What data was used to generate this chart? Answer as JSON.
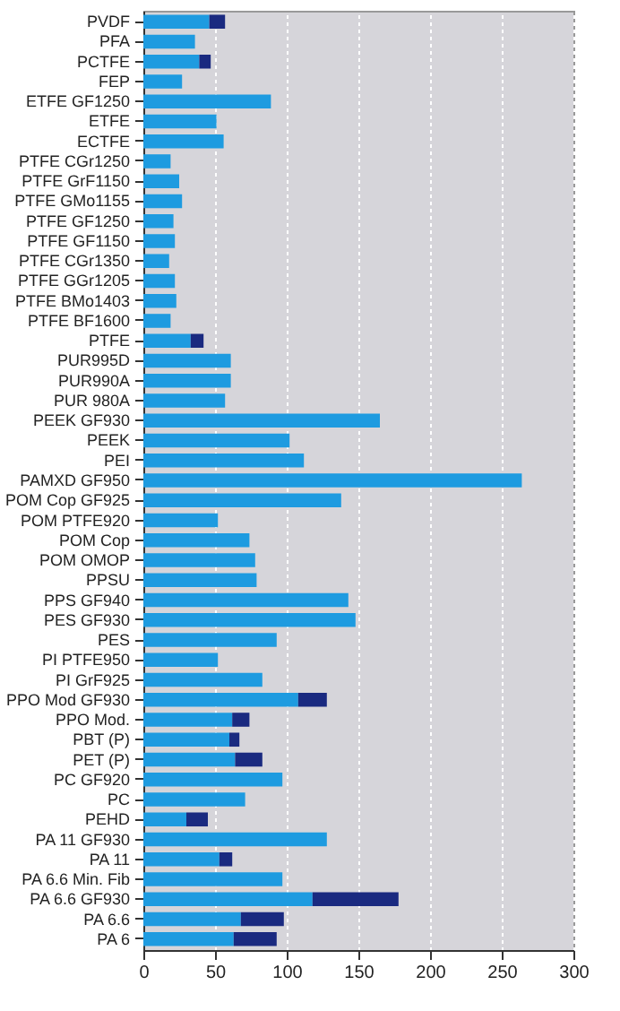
{
  "chart_data": {
    "type": "bar",
    "orientation": "horizontal",
    "stacked": true,
    "grid": "x",
    "categories": [
      "PVDF",
      "PFA",
      "PCTFE",
      "FEP",
      "ETFE GF1250",
      "ETFE",
      "ECTFE",
      "PTFE CGr1250",
      "PTFE GrF1150",
      "PTFE GMo1155",
      "PTFE GF1250",
      "PTFE GF1150",
      "PTFE CGr1350",
      "PTFE GGr1205",
      "PTFE BMo1403",
      "PTFE BF1600",
      "PTFE",
      "PUR995D",
      "PUR990A",
      "PUR 980A",
      "PEEK GF930",
      "PEEK",
      "PEI",
      "PAMXD GF950",
      "POM Cop GF925",
      "POM PTFE920",
      "POM Cop",
      "POM OMOP",
      "PPSU",
      "PPS GF940",
      "PES GF930",
      "PES",
      "PI PTFE950",
      "PI GrF925",
      "PPO Mod GF930",
      "PPO Mod.",
      "PBT (P)",
      "PET (P)",
      "PC GF920",
      "PC",
      "PEHD",
      "PA 11 GF930",
      "PA 11",
      "PA 6.6 Min. Fib",
      "PA 6.6 GF930",
      "PA 6.6",
      "PA 6"
    ],
    "series": [
      {
        "color": "#1e9be0",
        "values": [
          46,
          36,
          39,
          27,
          89,
          51,
          56,
          19,
          25,
          27,
          21,
          22,
          18,
          22,
          23,
          19,
          33,
          61,
          61,
          57,
          165,
          102,
          112,
          264,
          138,
          52,
          74,
          78,
          79,
          143,
          148,
          93,
          52,
          83,
          108,
          62,
          60,
          64,
          97,
          71,
          30,
          128,
          53,
          97,
          118,
          68,
          63
        ]
      },
      {
        "color": "#1a2a80",
        "values": [
          11,
          null,
          8,
          null,
          null,
          null,
          null,
          null,
          null,
          null,
          null,
          null,
          null,
          null,
          null,
          null,
          9,
          null,
          null,
          null,
          null,
          null,
          null,
          null,
          null,
          null,
          null,
          null,
          null,
          null,
          null,
          null,
          null,
          null,
          20,
          12,
          7,
          19,
          null,
          null,
          15,
          null,
          9,
          null,
          60,
          30,
          30
        ]
      }
    ],
    "xlim": [
      0,
      300
    ],
    "xticks": [
      0,
      50,
      100,
      150,
      200,
      250,
      300
    ]
  }
}
